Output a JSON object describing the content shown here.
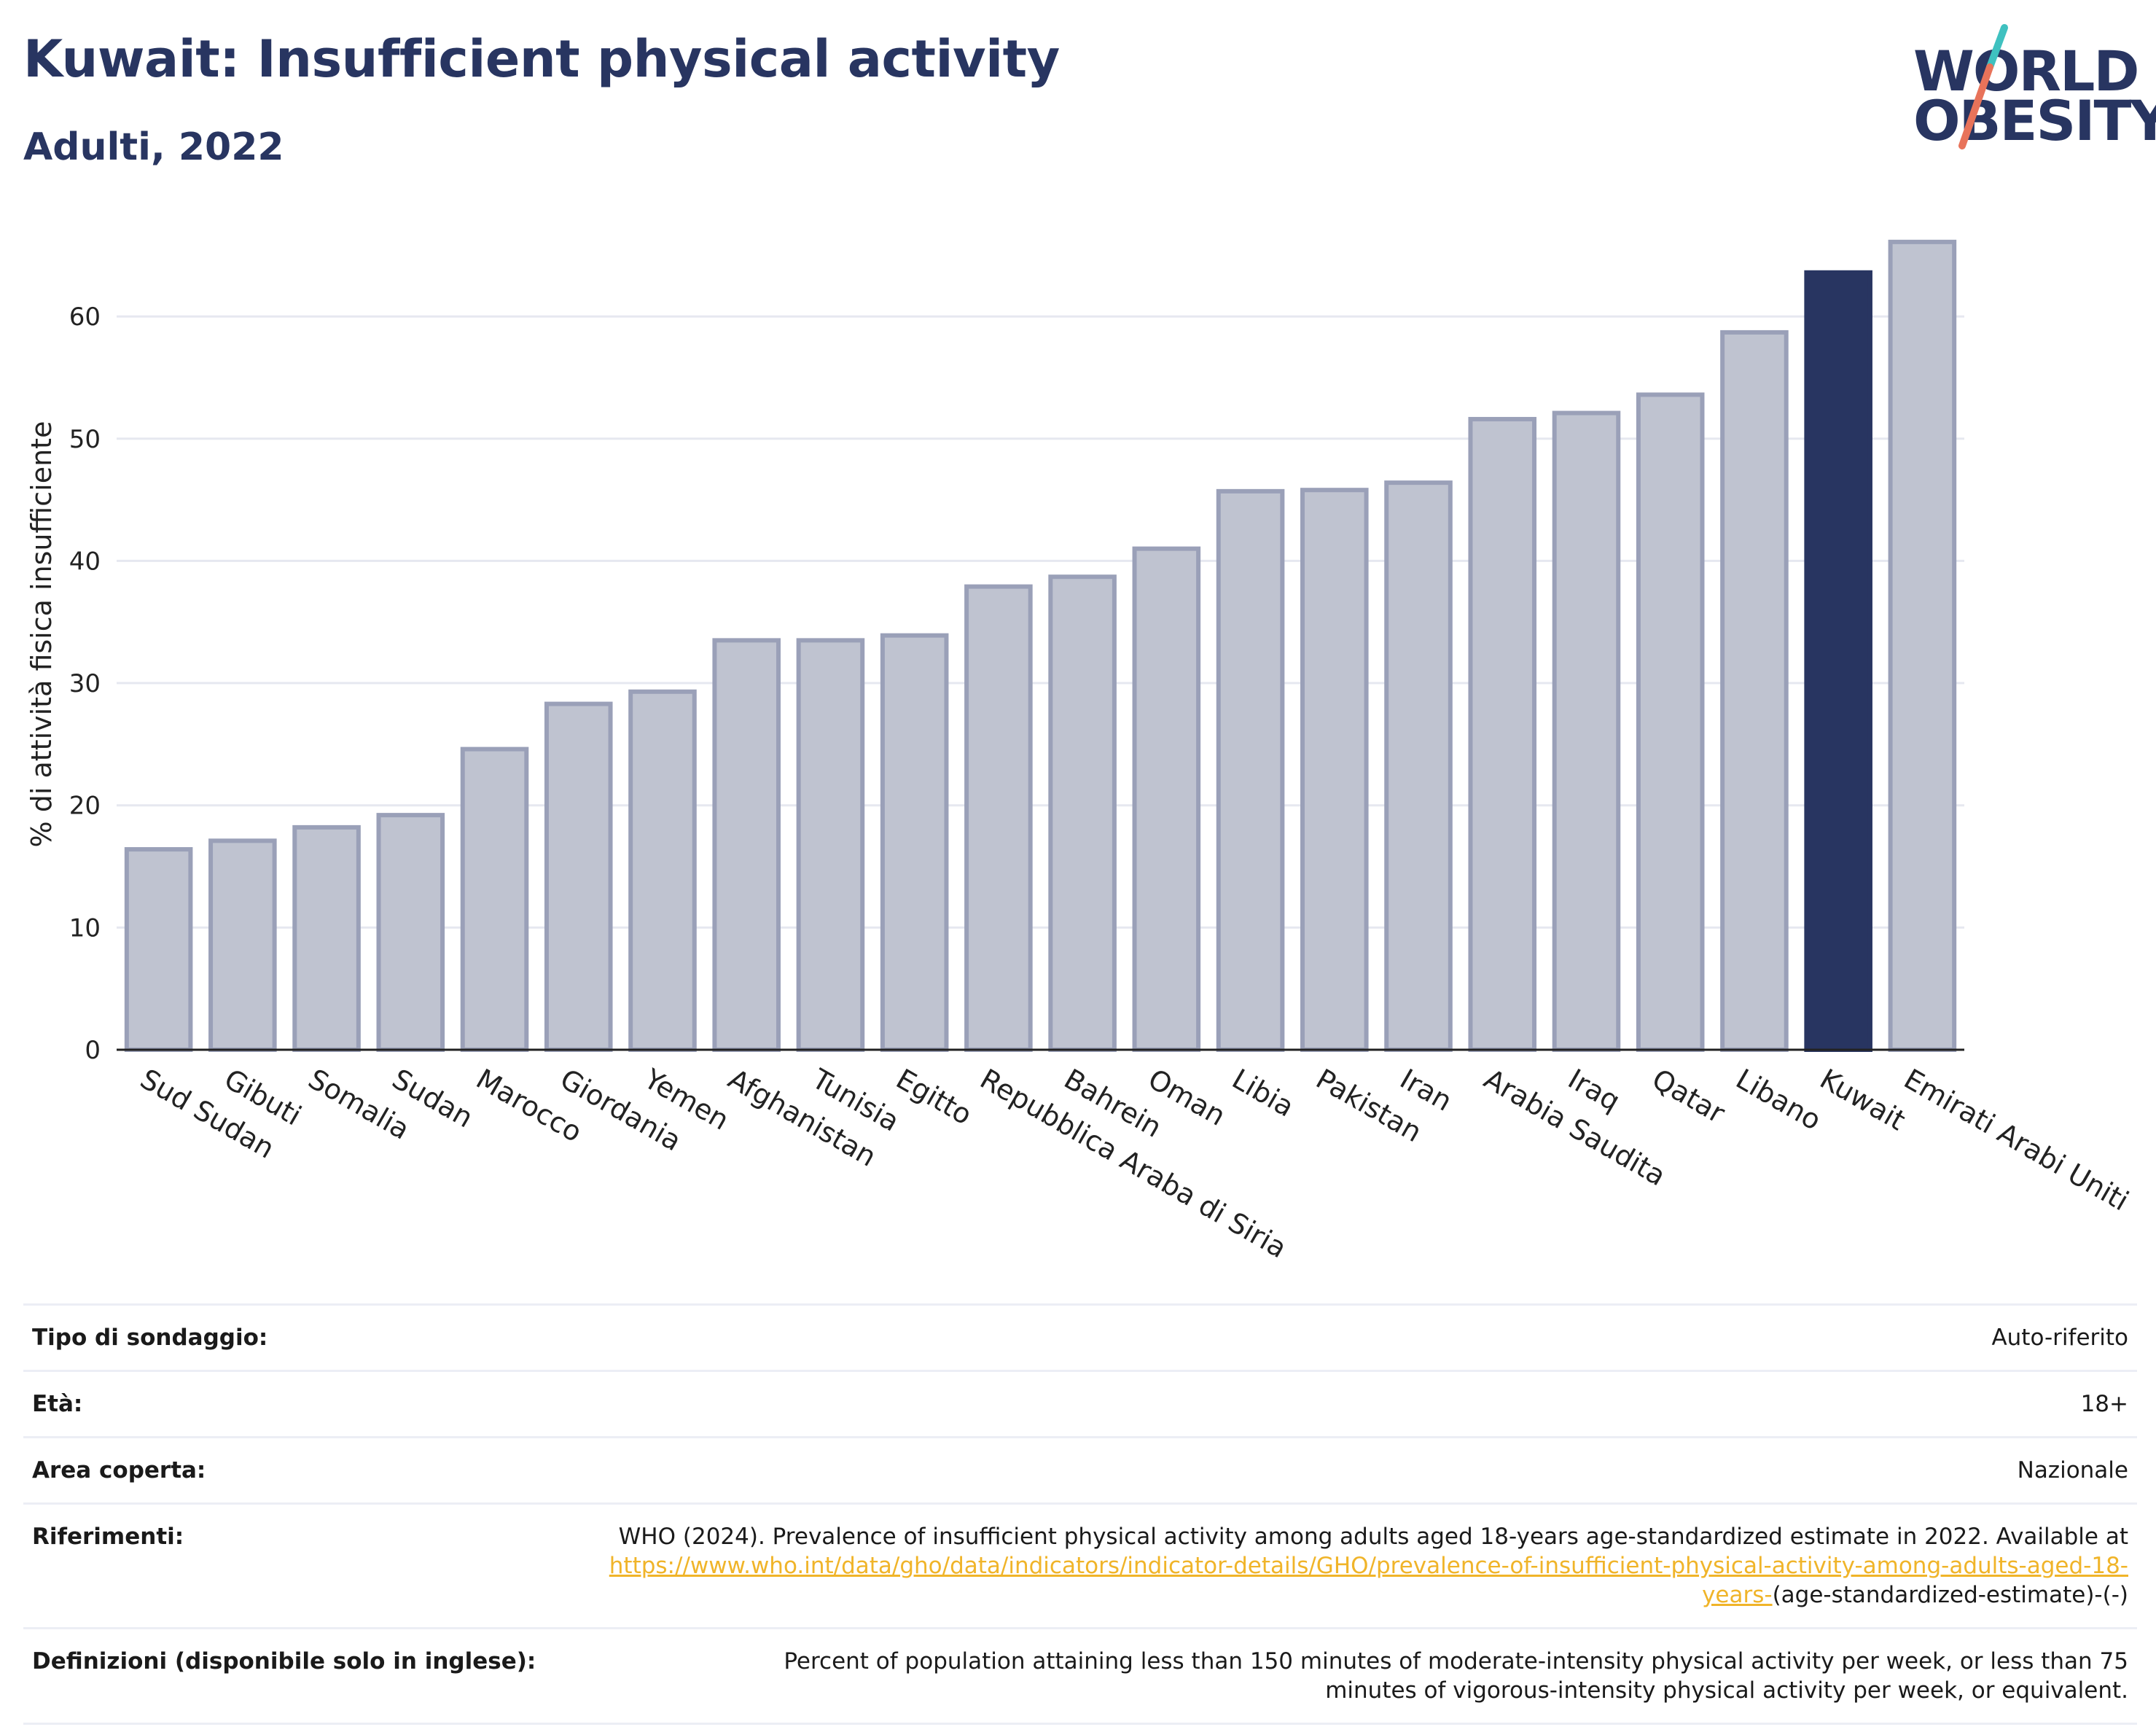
{
  "header": {
    "title": "Kuwait: Insufficient physical activity",
    "subtitle": "Adulti, 2022"
  },
  "logo": {
    "line1": "WORLD",
    "line2": "OBESITY",
    "slash_colors": [
      "#3fc1c0",
      "#e8735a"
    ]
  },
  "colors": {
    "bar": "#bfc3d0",
    "bar_border": "#9aa0b8",
    "highlight": "#283561",
    "grid": "#e6e8f0",
    "text": "#222222",
    "link": "#f0b429"
  },
  "chart_data": {
    "type": "bar",
    "title": "Kuwait: Insufficient physical activity",
    "subtitle": "Adulti, 2022",
    "xlabel": "",
    "ylabel": "% di attività fisica insufficiente",
    "ylim": [
      0,
      68
    ],
    "yticks": [
      0,
      10,
      20,
      30,
      40,
      50,
      60
    ],
    "grid": true,
    "categories": [
      "Sud Sudan",
      "Gibuti",
      "Somalia",
      "Sudan",
      "Marocco",
      "Giordania",
      "Yemen",
      "Afghanistan",
      "Tunisia",
      "Egitto",
      "Repubblica Araba di Siria",
      "Bahrein",
      "Oman",
      "Libia",
      "Pakistan",
      "Iran",
      "Arabia Saudita",
      "Iraq",
      "Qatar",
      "Libano",
      "Kuwait",
      "Emirati Arabi Uniti"
    ],
    "values": [
      16.4,
      17.1,
      18.2,
      19.2,
      24.6,
      28.3,
      29.3,
      33.5,
      33.5,
      33.9,
      37.9,
      38.7,
      41.0,
      45.7,
      45.8,
      46.4,
      51.6,
      52.1,
      53.6,
      58.7,
      63.6,
      66.1
    ],
    "highlight": "Kuwait"
  },
  "details": {
    "rows": [
      {
        "label": "Tipo di sondaggio:",
        "value": "Auto-riferito"
      },
      {
        "label": "Età:",
        "value": "18+"
      },
      {
        "label": "Area coperta:",
        "value": "Nazionale"
      }
    ],
    "references": {
      "label": "Riferimenti:",
      "text": "WHO (2024). Prevalence of insufficient physical activity among adults aged 18-years age-standardized estimate in 2022. Available at",
      "link": "https://www.who.int/data/gho/data/indicators/indicator-details/GHO/prevalence-of-insufficient-physical-activity-among-adults-aged-18-years-",
      "suffix": "(age-standardized-estimate)-(-)"
    },
    "definitions": {
      "label": "Definizioni (disponibile solo in inglese):",
      "value": "Percent of population attaining less than 150 minutes of moderate-intensity physical activity per week, or less than 75 minutes of vigorous-intensity physical activity per week, or equivalent."
    }
  }
}
